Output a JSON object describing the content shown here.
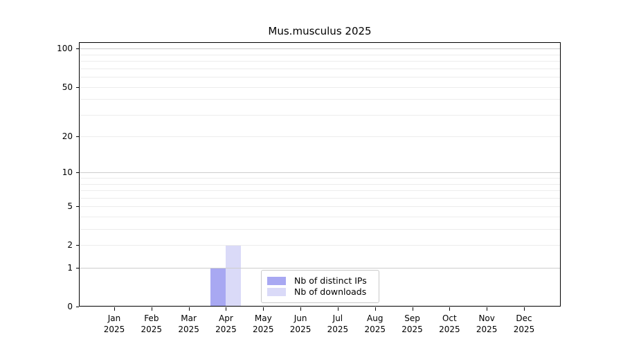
{
  "title": "Mus.musculus 2025",
  "chart_data": {
    "type": "bar",
    "title": "Mus.musculus 2025",
    "categories": [
      "Jan",
      "Feb",
      "Mar",
      "Apr",
      "May",
      "Jun",
      "Jul",
      "Aug",
      "Sep",
      "Oct",
      "Nov",
      "Dec"
    ],
    "category_year": "2025",
    "series": [
      {
        "name": "Nb of distinct IPs",
        "color": "#a8a8f2",
        "values": [
          0,
          0,
          0,
          1,
          0,
          0,
          0,
          0,
          0,
          0,
          0,
          0
        ]
      },
      {
        "name": "Nb of downloads",
        "color": "#dadaf8",
        "values": [
          0,
          0,
          0,
          2,
          0,
          0,
          0,
          0,
          0,
          0,
          0,
          0
        ]
      }
    ],
    "yticks": [
      0,
      1,
      2,
      5,
      10,
      20,
      50,
      100
    ],
    "yscale": "log10(1+v)",
    "ylim": [
      0,
      110
    ],
    "xlabel": "",
    "ylabel": "",
    "grid": "on",
    "grid_minor_color": "#ececec",
    "grid_major_color": "#cccccc",
    "grid_major_values": [
      1,
      10,
      100
    ],
    "legend_position": "bottom-center"
  }
}
